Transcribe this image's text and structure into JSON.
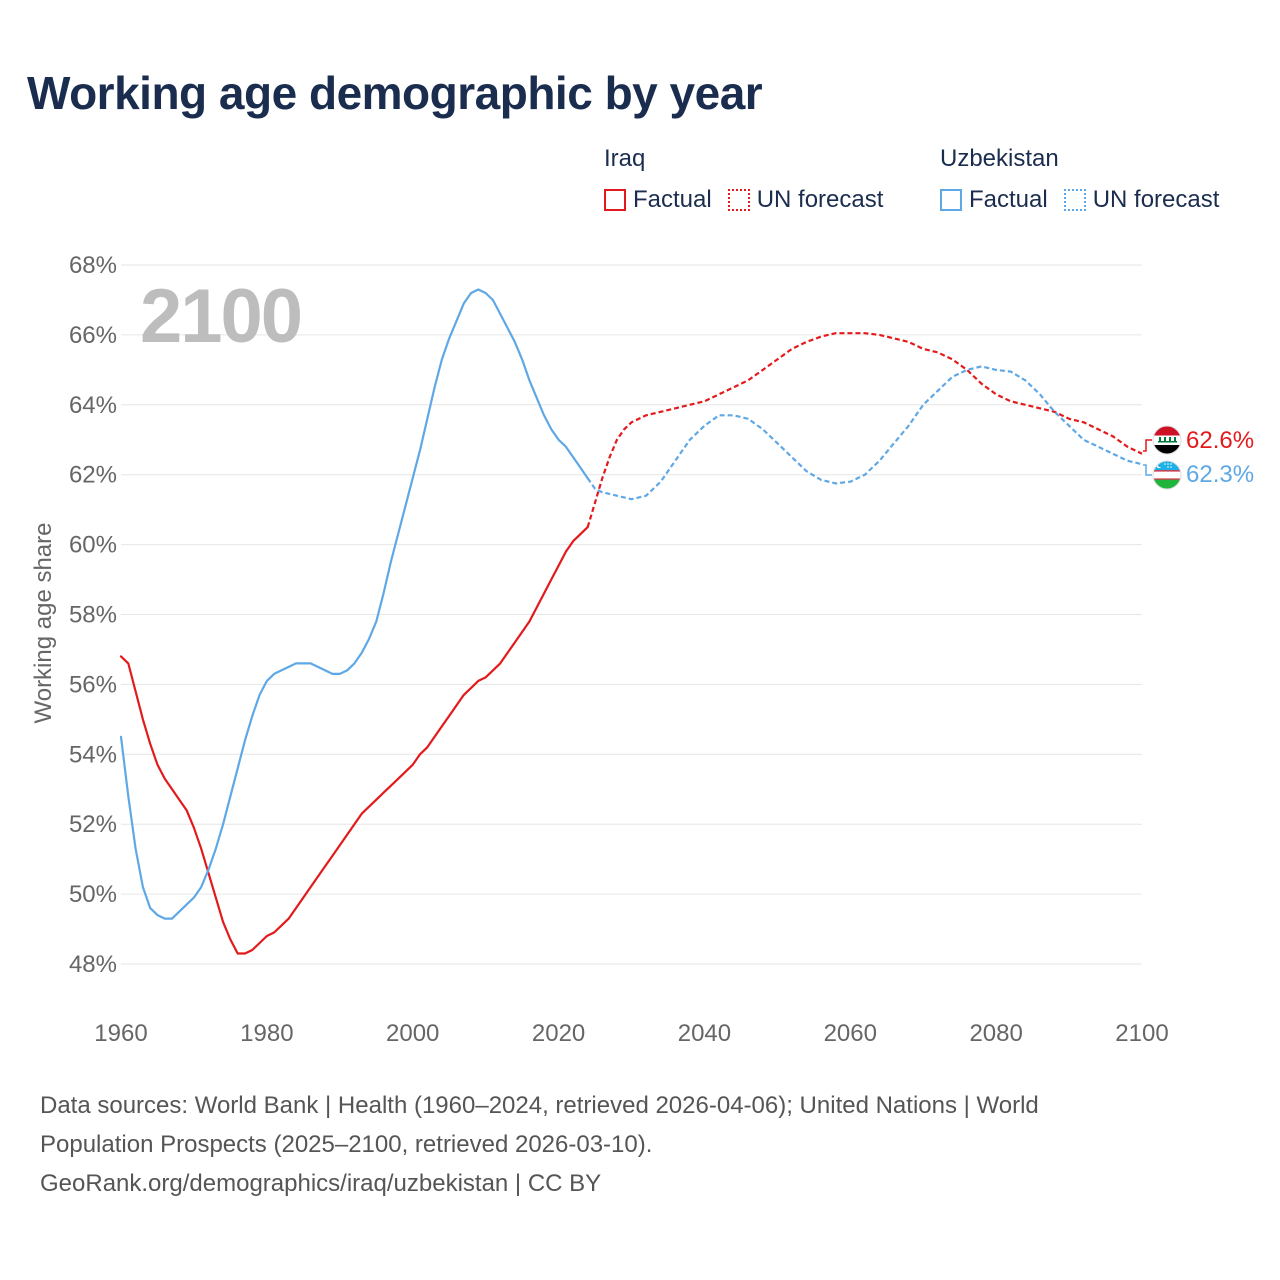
{
  "title": "Working age demographic by year",
  "legend": {
    "groups": [
      {
        "name": "Iraq",
        "factual_label": "Factual",
        "forecast_label": "UN forecast",
        "color": "#e31a1c"
      },
      {
        "name": "Uzbekistan",
        "factual_label": "Factual",
        "forecast_label": "UN forecast",
        "color": "#5fa8e6"
      }
    ]
  },
  "watermark_year": "2100",
  "chart_data": {
    "type": "line",
    "title": "Working age demographic by year",
    "xlabel": "",
    "ylabel": "Working age share",
    "xlim": [
      1960,
      2100
    ],
    "ylim": [
      48,
      68
    ],
    "x_ticks": [
      1960,
      1980,
      2000,
      2020,
      2040,
      2060,
      2080,
      2100
    ],
    "y_ticks": [
      "48%",
      "50%",
      "52%",
      "54%",
      "56%",
      "58%",
      "60%",
      "62%",
      "64%",
      "66%",
      "68%"
    ],
    "grid": true,
    "factual_range": "1960–2024",
    "forecast_range": "2025–2100",
    "series": [
      {
        "name": "Iraq",
        "color": "#e31a1c",
        "end_label": "62.6%",
        "points": [
          [
            1960,
            56.8
          ],
          [
            1961,
            56.6
          ],
          [
            1962,
            55.8
          ],
          [
            1963,
            55.0
          ],
          [
            1964,
            54.3
          ],
          [
            1965,
            53.7
          ],
          [
            1966,
            53.3
          ],
          [
            1967,
            53.0
          ],
          [
            1968,
            52.7
          ],
          [
            1969,
            52.4
          ],
          [
            1970,
            51.9
          ],
          [
            1971,
            51.3
          ],
          [
            1972,
            50.6
          ],
          [
            1973,
            49.9
          ],
          [
            1974,
            49.2
          ],
          [
            1975,
            48.7
          ],
          [
            1976,
            48.3
          ],
          [
            1977,
            48.3
          ],
          [
            1978,
            48.4
          ],
          [
            1979,
            48.6
          ],
          [
            1980,
            48.8
          ],
          [
            1981,
            48.9
          ],
          [
            1982,
            49.1
          ],
          [
            1983,
            49.3
          ],
          [
            1984,
            49.6
          ],
          [
            1985,
            49.9
          ],
          [
            1986,
            50.2
          ],
          [
            1987,
            50.5
          ],
          [
            1988,
            50.8
          ],
          [
            1989,
            51.1
          ],
          [
            1990,
            51.4
          ],
          [
            1991,
            51.7
          ],
          [
            1992,
            52.0
          ],
          [
            1993,
            52.3
          ],
          [
            1994,
            52.5
          ],
          [
            1995,
            52.7
          ],
          [
            1996,
            52.9
          ],
          [
            1997,
            53.1
          ],
          [
            1998,
            53.3
          ],
          [
            1999,
            53.5
          ],
          [
            2000,
            53.7
          ],
          [
            2001,
            54.0
          ],
          [
            2002,
            54.2
          ],
          [
            2003,
            54.5
          ],
          [
            2004,
            54.8
          ],
          [
            2005,
            55.1
          ],
          [
            2006,
            55.4
          ],
          [
            2007,
            55.7
          ],
          [
            2008,
            55.9
          ],
          [
            2009,
            56.1
          ],
          [
            2010,
            56.2
          ],
          [
            2011,
            56.4
          ],
          [
            2012,
            56.6
          ],
          [
            2013,
            56.9
          ],
          [
            2014,
            57.2
          ],
          [
            2015,
            57.5
          ],
          [
            2016,
            57.8
          ],
          [
            2017,
            58.2
          ],
          [
            2018,
            58.6
          ],
          [
            2019,
            59.0
          ],
          [
            2020,
            59.4
          ],
          [
            2021,
            59.8
          ],
          [
            2022,
            60.1
          ],
          [
            2023,
            60.3
          ],
          [
            2024,
            60.5
          ],
          [
            2025,
            61.2
          ],
          [
            2026,
            61.9
          ],
          [
            2027,
            62.5
          ],
          [
            2028,
            63.0
          ],
          [
            2029,
            63.3
          ],
          [
            2030,
            63.5
          ],
          [
            2032,
            63.7
          ],
          [
            2034,
            63.8
          ],
          [
            2036,
            63.9
          ],
          [
            2038,
            64.0
          ],
          [
            2040,
            64.1
          ],
          [
            2042,
            64.3
          ],
          [
            2044,
            64.5
          ],
          [
            2046,
            64.7
          ],
          [
            2048,
            65.0
          ],
          [
            2050,
            65.3
          ],
          [
            2052,
            65.6
          ],
          [
            2054,
            65.8
          ],
          [
            2056,
            65.95
          ],
          [
            2058,
            66.05
          ],
          [
            2060,
            66.05
          ],
          [
            2062,
            66.05
          ],
          [
            2064,
            66.0
          ],
          [
            2066,
            65.9
          ],
          [
            2068,
            65.8
          ],
          [
            2070,
            65.6
          ],
          [
            2072,
            65.5
          ],
          [
            2074,
            65.3
          ],
          [
            2076,
            65.0
          ],
          [
            2078,
            64.6
          ],
          [
            2080,
            64.3
          ],
          [
            2082,
            64.1
          ],
          [
            2084,
            64.0
          ],
          [
            2086,
            63.9
          ],
          [
            2088,
            63.8
          ],
          [
            2090,
            63.6
          ],
          [
            2092,
            63.5
          ],
          [
            2094,
            63.3
          ],
          [
            2096,
            63.1
          ],
          [
            2098,
            62.8
          ],
          [
            2100,
            62.6
          ]
        ]
      },
      {
        "name": "Uzbekistan",
        "color": "#5fa8e6",
        "end_label": "62.3%",
        "points": [
          [
            1960,
            54.5
          ],
          [
            1961,
            52.8
          ],
          [
            1962,
            51.3
          ],
          [
            1963,
            50.2
          ],
          [
            1964,
            49.6
          ],
          [
            1965,
            49.4
          ],
          [
            1966,
            49.3
          ],
          [
            1967,
            49.3
          ],
          [
            1968,
            49.5
          ],
          [
            1969,
            49.7
          ],
          [
            1970,
            49.9
          ],
          [
            1971,
            50.2
          ],
          [
            1972,
            50.7
          ],
          [
            1973,
            51.3
          ],
          [
            1974,
            52.0
          ],
          [
            1975,
            52.8
          ],
          [
            1976,
            53.6
          ],
          [
            1977,
            54.4
          ],
          [
            1978,
            55.1
          ],
          [
            1979,
            55.7
          ],
          [
            1980,
            56.1
          ],
          [
            1981,
            56.3
          ],
          [
            1982,
            56.4
          ],
          [
            1983,
            56.5
          ],
          [
            1984,
            56.6
          ],
          [
            1985,
            56.6
          ],
          [
            1986,
            56.6
          ],
          [
            1987,
            56.5
          ],
          [
            1988,
            56.4
          ],
          [
            1989,
            56.3
          ],
          [
            1990,
            56.3
          ],
          [
            1991,
            56.4
          ],
          [
            1992,
            56.6
          ],
          [
            1993,
            56.9
          ],
          [
            1994,
            57.3
          ],
          [
            1995,
            57.8
          ],
          [
            1996,
            58.6
          ],
          [
            1997,
            59.5
          ],
          [
            1998,
            60.3
          ],
          [
            1999,
            61.1
          ],
          [
            2000,
            61.9
          ],
          [
            2001,
            62.7
          ],
          [
            2002,
            63.6
          ],
          [
            2003,
            64.5
          ],
          [
            2004,
            65.3
          ],
          [
            2005,
            65.9
          ],
          [
            2006,
            66.4
          ],
          [
            2007,
            66.9
          ],
          [
            2008,
            67.2
          ],
          [
            2009,
            67.3
          ],
          [
            2010,
            67.2
          ],
          [
            2011,
            67.0
          ],
          [
            2012,
            66.6
          ],
          [
            2013,
            66.2
          ],
          [
            2014,
            65.8
          ],
          [
            2015,
            65.3
          ],
          [
            2016,
            64.7
          ],
          [
            2017,
            64.2
          ],
          [
            2018,
            63.7
          ],
          [
            2019,
            63.3
          ],
          [
            2020,
            63.0
          ],
          [
            2021,
            62.8
          ],
          [
            2022,
            62.5
          ],
          [
            2023,
            62.2
          ],
          [
            2024,
            61.9
          ],
          [
            2025,
            61.6
          ],
          [
            2026,
            61.5
          ],
          [
            2028,
            61.4
          ],
          [
            2030,
            61.3
          ],
          [
            2032,
            61.4
          ],
          [
            2034,
            61.8
          ],
          [
            2036,
            62.4
          ],
          [
            2038,
            63.0
          ],
          [
            2040,
            63.4
          ],
          [
            2042,
            63.7
          ],
          [
            2044,
            63.7
          ],
          [
            2046,
            63.6
          ],
          [
            2048,
            63.3
          ],
          [
            2050,
            62.9
          ],
          [
            2052,
            62.5
          ],
          [
            2054,
            62.1
          ],
          [
            2056,
            61.85
          ],
          [
            2058,
            61.75
          ],
          [
            2060,
            61.8
          ],
          [
            2062,
            62.0
          ],
          [
            2064,
            62.4
          ],
          [
            2066,
            62.9
          ],
          [
            2068,
            63.4
          ],
          [
            2070,
            64.0
          ],
          [
            2072,
            64.4
          ],
          [
            2074,
            64.8
          ],
          [
            2076,
            65.0
          ],
          [
            2078,
            65.1
          ],
          [
            2080,
            65.0
          ],
          [
            2082,
            64.95
          ],
          [
            2084,
            64.7
          ],
          [
            2086,
            64.3
          ],
          [
            2088,
            63.8
          ],
          [
            2090,
            63.4
          ],
          [
            2092,
            63.0
          ],
          [
            2094,
            62.8
          ],
          [
            2096,
            62.6
          ],
          [
            2098,
            62.4
          ],
          [
            2100,
            62.3
          ]
        ]
      }
    ]
  },
  "footer": {
    "line1": "Data sources: World Bank | Health (1960–2024, retrieved 2026-04-06); United Nations | World Population Prospects (2025–2100, retrieved 2026-03-10).",
    "line2": "GeoRank.org/demographics/iraq/uzbekistan | CC BY"
  }
}
